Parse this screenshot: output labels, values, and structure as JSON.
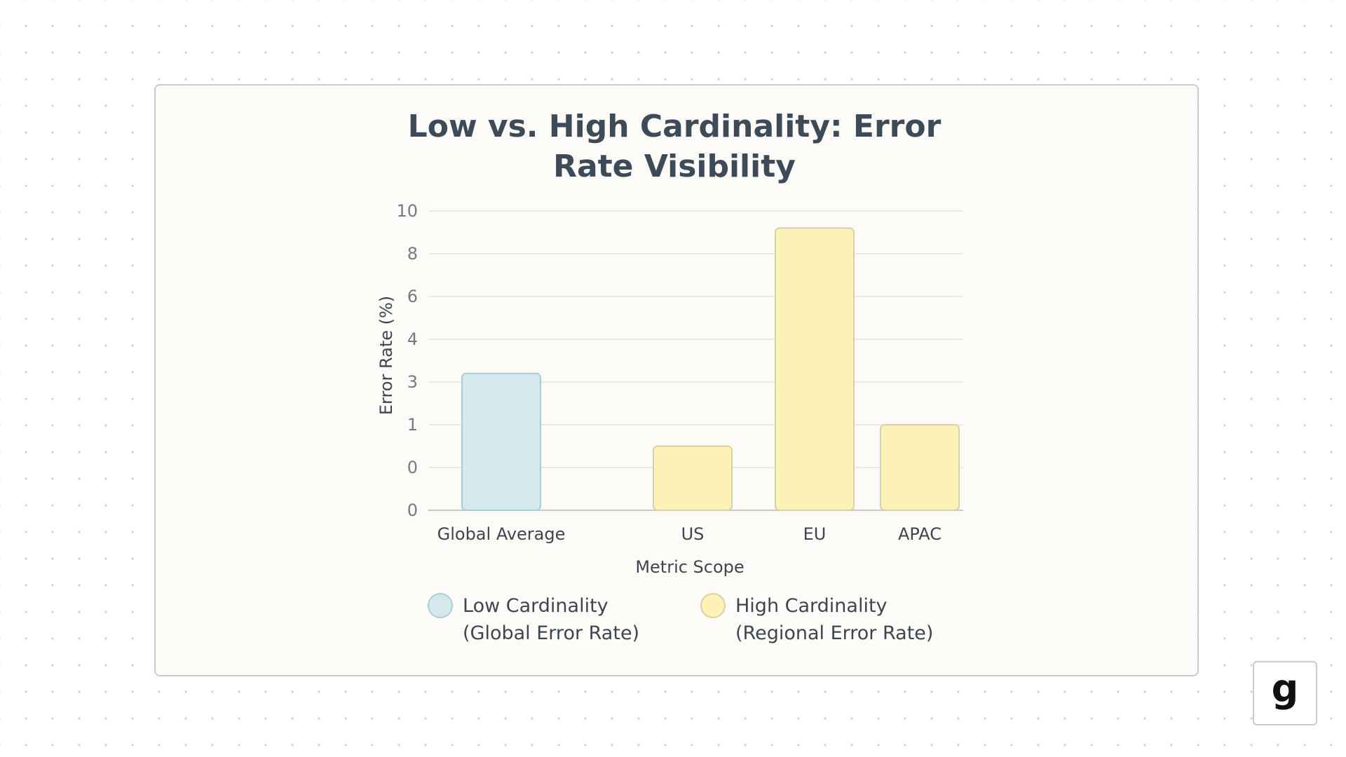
{
  "logo": {
    "glyph": "g"
  },
  "chart_data": {
    "type": "bar",
    "title_lines": [
      "Low vs. High Cardinality: Error",
      "Rate Visibility"
    ],
    "xlabel": "Metric Scope",
    "ylabel": "Error Rate (%)",
    "y_tick_labels": [
      "10",
      "8",
      "6",
      "4",
      "3",
      "1",
      "0",
      "0"
    ],
    "categories": [
      "Global Average",
      "US",
      "EU",
      "APAC"
    ],
    "values": [
      3.2,
      0.5,
      9.2,
      1.0
    ],
    "bar_series": [
      0,
      1,
      1,
      1
    ],
    "grid": true,
    "series": [
      {
        "name_lines": [
          "Low Cardinality",
          "(Global Error Rate)"
        ],
        "color": "#d3e9ee",
        "stroke": "#a9cdd6"
      },
      {
        "name_lines": [
          "High Cardinality",
          "(Regional Error Rate)"
        ],
        "color": "#fcf2b8",
        "stroke": "#d8d1a5"
      }
    ],
    "legend_position": "bottom"
  }
}
